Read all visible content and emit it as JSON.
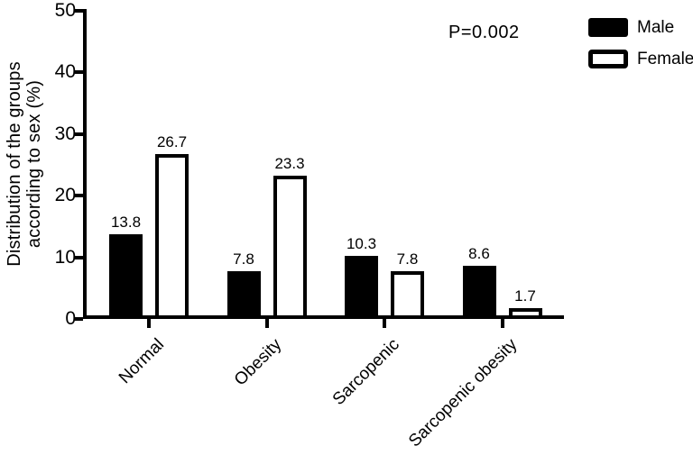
{
  "figure": {
    "background": "#ffffff",
    "ink": "#000000"
  },
  "chart_data": {
    "type": "bar",
    "title": "",
    "categories": [
      "Normal",
      "Obesity",
      "Sarcopenic",
      "Sarcopenic obesity"
    ],
    "series": [
      {
        "name": "Male",
        "values": [
          13.8,
          7.8,
          10.3,
          8.6
        ],
        "fill": "#000000",
        "stroke": "#000000"
      },
      {
        "name": "Female",
        "values": [
          26.7,
          23.3,
          7.8,
          1.7
        ],
        "fill": "#ffffff",
        "stroke": "#000000"
      }
    ],
    "value_labels": [
      "13.8",
      "26.7",
      "7.8",
      "23.3",
      "10.3",
      "7.8",
      "8.6",
      "1.7"
    ],
    "ylabel": "Distribution of the groups according to sex (%)",
    "ylabel_line1": "Distribution of the groups",
    "ylabel_line2": "according to sex (%)",
    "xlabel": "",
    "yticks": [
      0,
      10,
      20,
      30,
      40,
      50
    ],
    "ylim": [
      0,
      50
    ],
    "grid": false,
    "annotation": "P=0.002",
    "legend": {
      "position": "top-right",
      "male_label": "Male",
      "female_label": "Female"
    }
  }
}
